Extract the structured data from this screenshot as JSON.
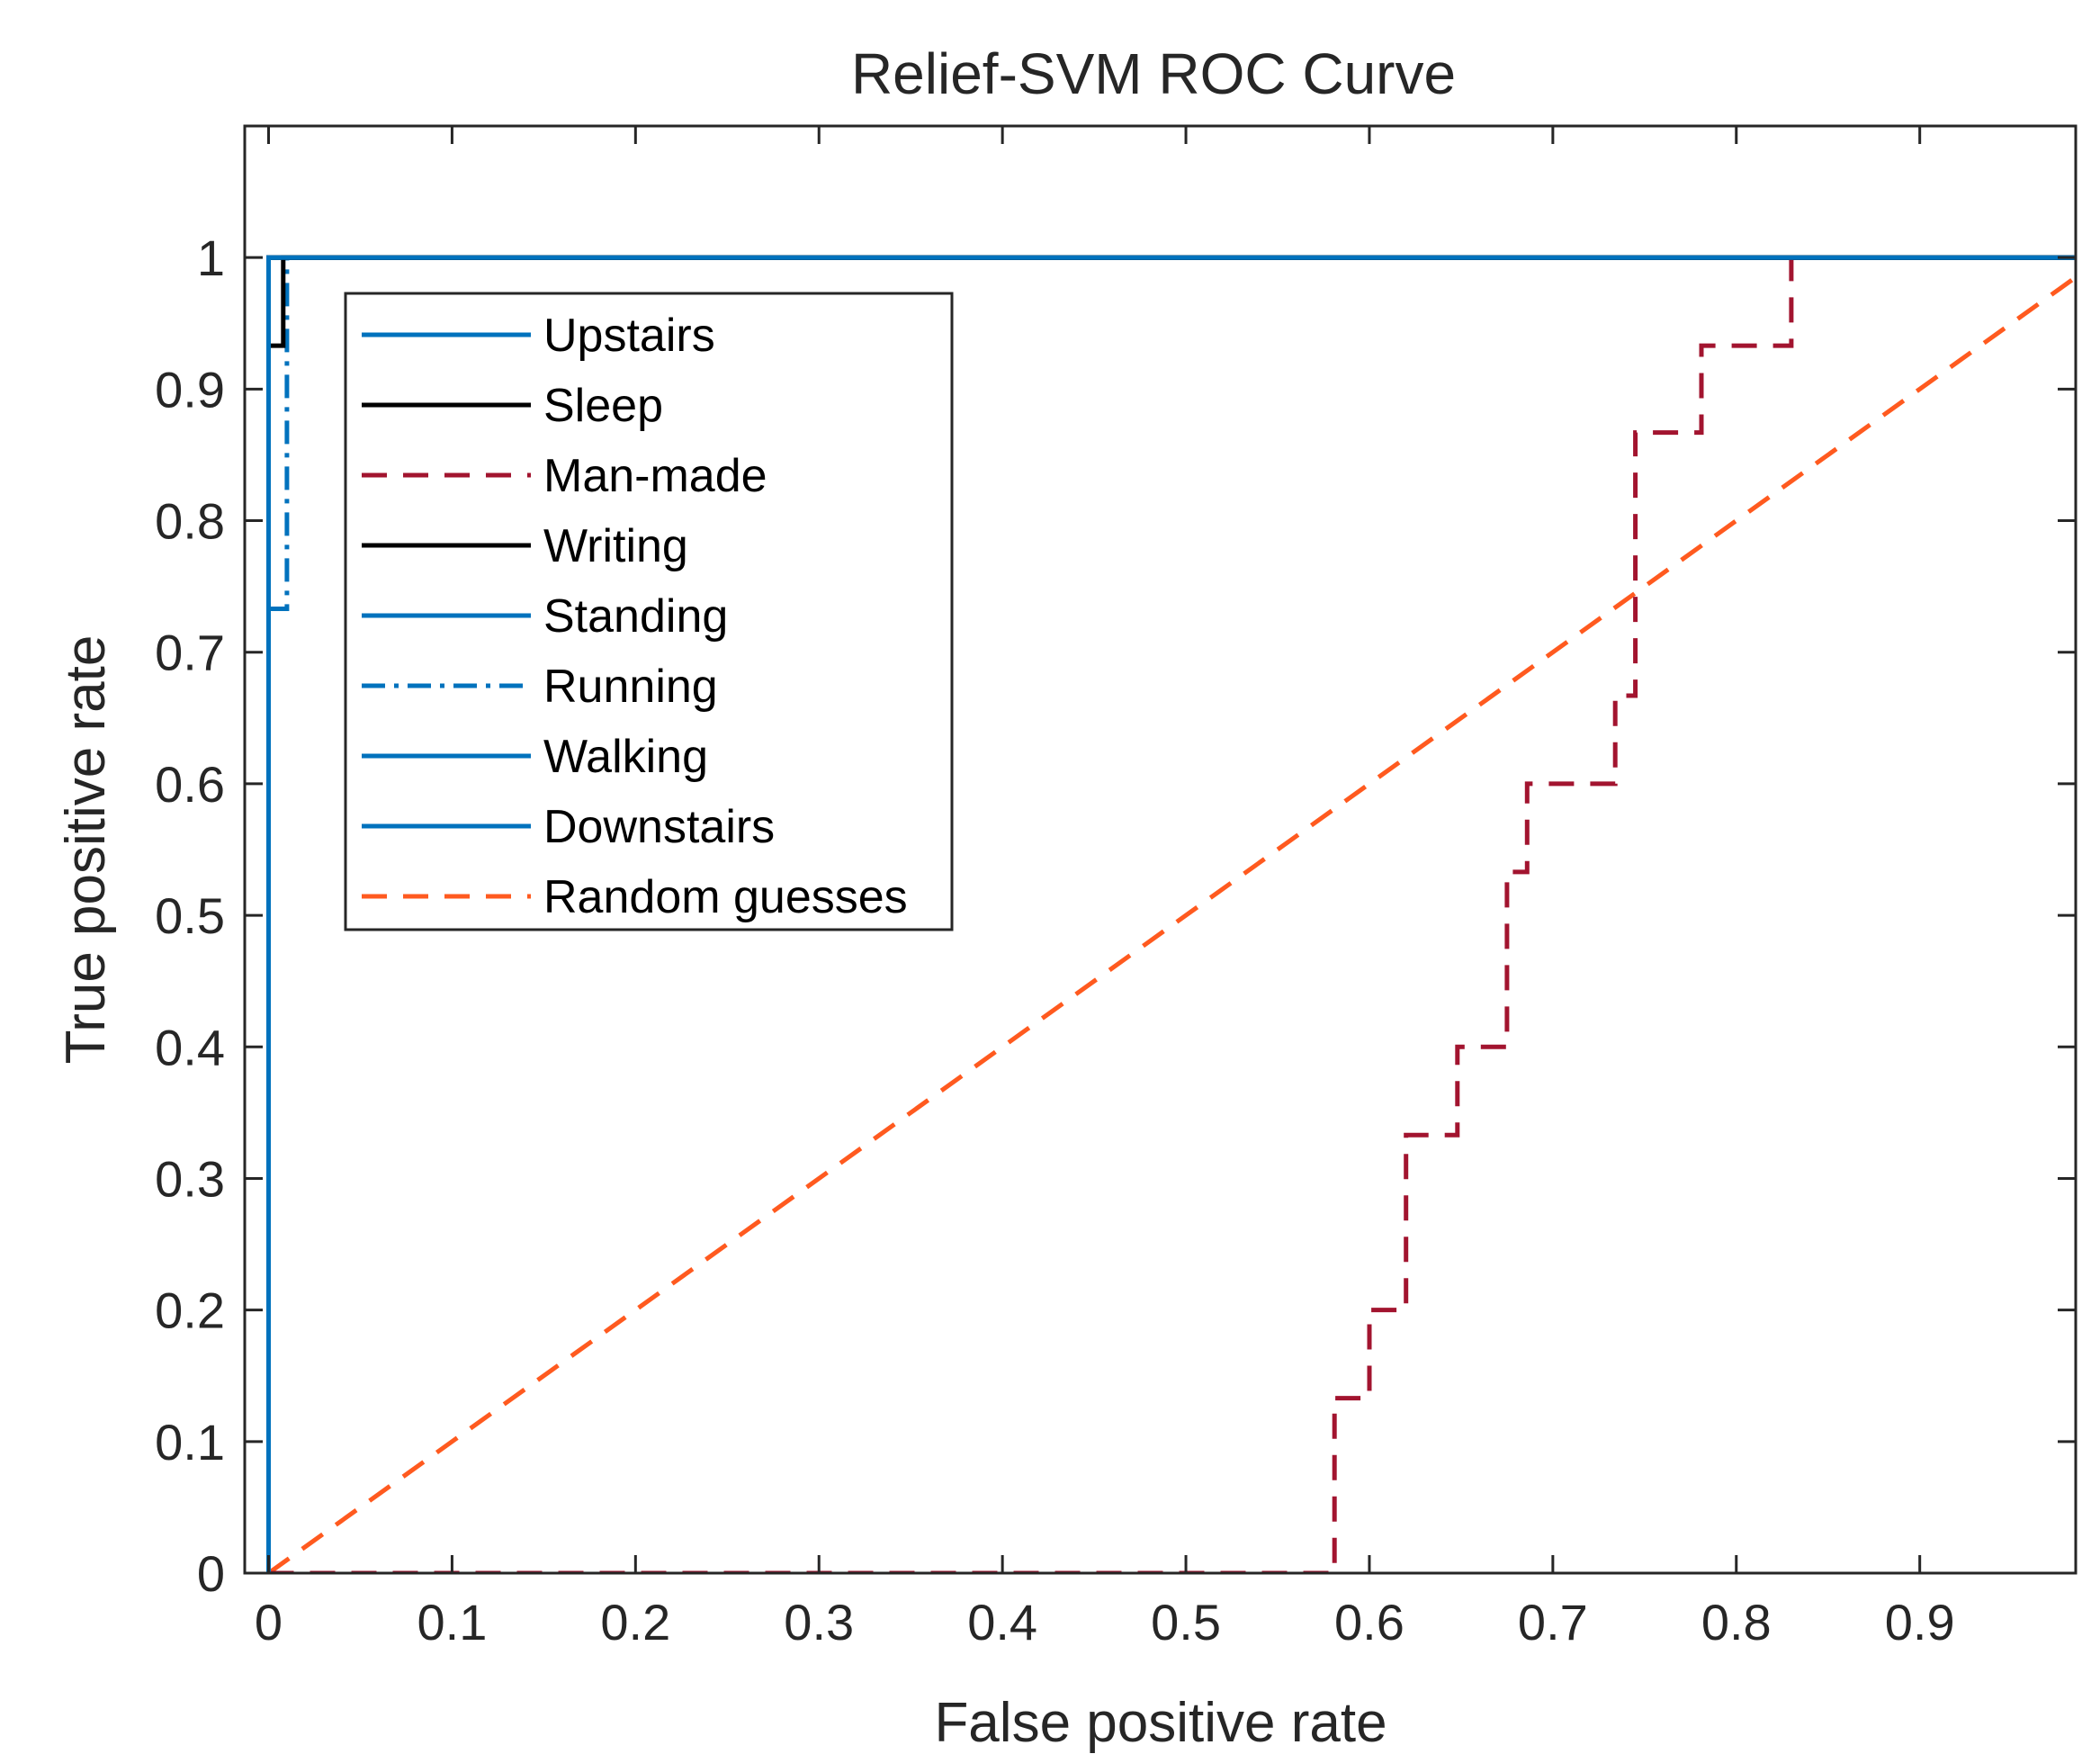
{
  "chart_data": {
    "type": "line",
    "title": "Relief-SVM ROC Curve",
    "xlabel": "False positive rate",
    "ylabel": "True positive rate",
    "xlim": [
      -0.013,
      0.985
    ],
    "ylim": [
      0,
      1.1
    ],
    "xticks": [
      0,
      0.1,
      0.2,
      0.3,
      0.4,
      0.5,
      0.6,
      0.7,
      0.8,
      0.9
    ],
    "xtick_labels": [
      "0",
      "0.1",
      "0.2",
      "0.3",
      "0.4",
      "0.5",
      "0.6",
      "0.7",
      "0.8",
      "0.9"
    ],
    "yticks": [
      0,
      0.1,
      0.2,
      0.3,
      0.4,
      0.5,
      0.6,
      0.7,
      0.8,
      0.9,
      1
    ],
    "ytick_labels": [
      "0",
      "0.1",
      "0.2",
      "0.3",
      "0.4",
      "0.5",
      "0.6",
      "0.7",
      "0.8",
      "0.9",
      "1"
    ],
    "grid": false,
    "legend_position": "top-left",
    "series": [
      {
        "name": "Upstairs",
        "color": "#0072BD",
        "dash": "solid",
        "x": [
          0,
          0,
          0.985
        ],
        "y": [
          0,
          1,
          1
        ]
      },
      {
        "name": "Sleep",
        "color": "#000000",
        "dash": "solid",
        "x": [
          0,
          0,
          0.008,
          0.008,
          0.985
        ],
        "y": [
          0,
          0.933,
          0.933,
          1,
          1
        ]
      },
      {
        "name": "Man-made",
        "color": "#A2142F",
        "dash": "dashed",
        "x": [
          0,
          0.581,
          0.581,
          0.6,
          0.6,
          0.62,
          0.62,
          0.648,
          0.648,
          0.675,
          0.675,
          0.686,
          0.686,
          0.734,
          0.734,
          0.745,
          0.745,
          0.781,
          0.781,
          0.83,
          0.83
        ],
        "y": [
          0,
          0,
          0.133,
          0.133,
          0.2,
          0.2,
          0.333,
          0.333,
          0.4,
          0.4,
          0.533,
          0.533,
          0.6,
          0.6,
          0.667,
          0.667,
          0.867,
          0.867,
          0.933,
          0.933,
          1
        ]
      },
      {
        "name": "Writing",
        "color": "#000000",
        "dash": "solid",
        "x": [
          0,
          0,
          0.985
        ],
        "y": [
          0,
          1,
          1
        ]
      },
      {
        "name": "Standing",
        "color": "#0072BD",
        "dash": "solid",
        "x": [
          0,
          0,
          0.985
        ],
        "y": [
          0,
          1,
          1
        ]
      },
      {
        "name": "Running",
        "color": "#0072BD",
        "dash": "dashdot",
        "x": [
          0,
          0,
          0.01,
          0.01,
          0.985
        ],
        "y": [
          0,
          0.733,
          0.733,
          1,
          1
        ]
      },
      {
        "name": "Walking",
        "color": "#0072BD",
        "dash": "solid",
        "x": [
          0,
          0,
          0.985
        ],
        "y": [
          0,
          1,
          1
        ]
      },
      {
        "name": "Downstairs",
        "color": "#0072BD",
        "dash": "solid",
        "x": [
          0,
          0,
          0.985
        ],
        "y": [
          0,
          1,
          1
        ]
      },
      {
        "name": "Random guesses",
        "color": "#FF5A1F",
        "dash": "dashed",
        "x": [
          0,
          0.985
        ],
        "y": [
          0,
          0.985
        ]
      }
    ]
  }
}
